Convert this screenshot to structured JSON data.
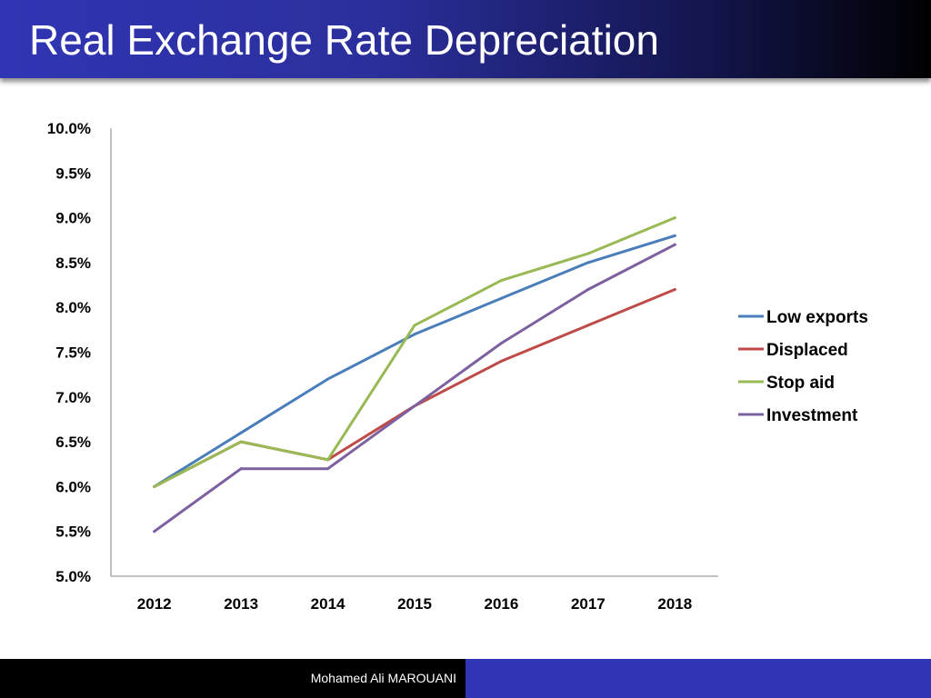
{
  "slide": {
    "title": "Real Exchange Rate Depreciation",
    "footer": "Mohamed Ali MAROUANI"
  },
  "colors": {
    "title_gradient_start": "#3035b4",
    "title_gradient_end": "#000000",
    "footer_left": "#000000",
    "footer_right": "#3035b4"
  },
  "chart_data": {
    "type": "line",
    "title": "",
    "xlabel": "",
    "ylabel": "",
    "categories": [
      "2012",
      "2013",
      "2014",
      "2015",
      "2016",
      "2017",
      "2018"
    ],
    "ylim": [
      5.0,
      10.0
    ],
    "y_ticks": [
      "5.0%",
      "5.5%",
      "6.0%",
      "6.5%",
      "7.0%",
      "7.5%",
      "8.0%",
      "8.5%",
      "9.0%",
      "9.5%",
      "10.0%"
    ],
    "y_tick_values": [
      5.0,
      5.5,
      6.0,
      6.5,
      7.0,
      7.5,
      8.0,
      8.5,
      9.0,
      9.5,
      10.0
    ],
    "y_unit": "%",
    "grid": false,
    "legend_position": "right",
    "series": [
      {
        "name": "Low exports",
        "color": "#4a7ebb",
        "values": [
          6.0,
          6.6,
          7.2,
          7.7,
          8.1,
          8.5,
          8.8
        ]
      },
      {
        "name": "Displaced",
        "color": "#be4b48",
        "values": [
          6.0,
          6.5,
          6.3,
          6.9,
          7.4,
          7.8,
          8.2
        ]
      },
      {
        "name": "Stop aid",
        "color": "#98b954",
        "values": [
          6.0,
          6.5,
          6.3,
          7.8,
          8.3,
          8.6,
          9.0
        ]
      },
      {
        "name": "Investment",
        "color": "#7d60a0",
        "values": [
          5.5,
          6.2,
          6.2,
          6.9,
          7.6,
          8.2,
          8.7
        ]
      }
    ]
  }
}
